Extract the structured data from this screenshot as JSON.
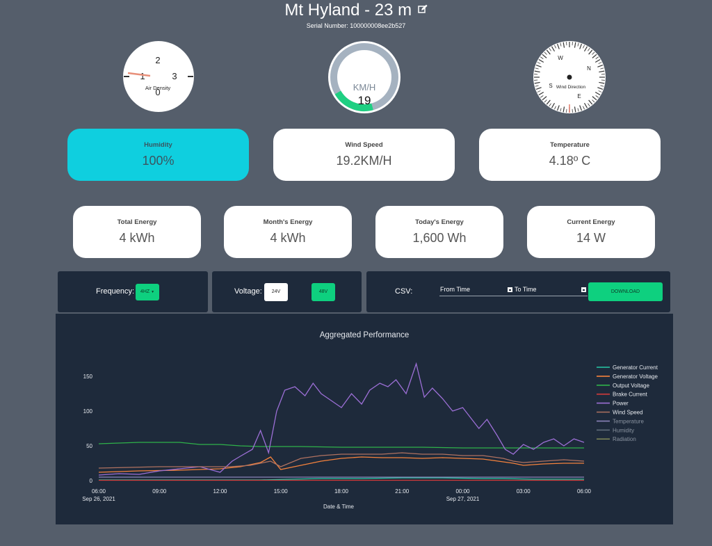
{
  "header": {
    "title": "Mt Hyland - 23 m",
    "serial": "Serial Number: 100000008ee2b527"
  },
  "gauges": {
    "air_density": {
      "label": "Air Density",
      "ticks": [
        "0",
        "1",
        "2",
        "3"
      ],
      "needle_color": "#e8907a"
    },
    "wind_speed": {
      "unit": "KM/H",
      "value": "19",
      "fill_fraction": 0.19,
      "fill_color": "#1fcf82",
      "track_color": "#a5b2c0"
    },
    "wind_direction": {
      "label": "Wind Direction",
      "cardinals": [
        "N",
        "E",
        "S",
        "W"
      ]
    }
  },
  "metrics_top": [
    {
      "label": "Humidity",
      "value": "100%"
    },
    {
      "label": "Wind Speed",
      "value": "19.2KM/H"
    },
    {
      "label": "Temperature",
      "value": "4.18º C"
    }
  ],
  "metrics_energy": [
    {
      "label": "Total Energy",
      "value": "4 kWh"
    },
    {
      "label": "Month's Energy",
      "value": "4 kWh"
    },
    {
      "label": "Today's Energy",
      "value": "1,600 Wh"
    },
    {
      "label": "Current Energy",
      "value": "14 W"
    }
  ],
  "controls": {
    "frequency": {
      "label": "Frequency:",
      "selected": "4HZ"
    },
    "voltage": {
      "label": "Voltage:",
      "options": [
        "24V",
        "48V"
      ]
    },
    "csv": {
      "label": "CSV:",
      "from_label": "From Time",
      "to_label": "To Time",
      "download_label": "DOWNLOAD"
    }
  },
  "chart_data": {
    "type": "line",
    "title": "Aggregated Performance",
    "xlabel": "Date & Time",
    "ylabel": "",
    "x_ticks": [
      "06:00",
      "09:00",
      "12:00",
      "15:00",
      "18:00",
      "21:00",
      "00:00",
      "03:00",
      "06:00"
    ],
    "x_tick_dates": [
      "Sep 26, 2021",
      "",
      "",
      "",
      "",
      "",
      "Sep 27, 2021",
      "",
      ""
    ],
    "x_range_hours": [
      0,
      24
    ],
    "y_ticks": [
      0,
      50,
      100,
      150
    ],
    "ylim": [
      0,
      170
    ],
    "legend_position": "right",
    "series": [
      {
        "name": "Generator Current",
        "color": "#27c9a6",
        "x": [
          0,
          8,
          9.5,
          11,
          13,
          15,
          17,
          19,
          20,
          21.5,
          24
        ],
        "y": [
          1,
          1,
          2,
          3,
          3,
          4,
          4,
          3,
          3,
          2,
          2
        ]
      },
      {
        "name": "Generator Voltage",
        "color": "#f5823c",
        "x": [
          0,
          2,
          4,
          6,
          7,
          8,
          8.5,
          9,
          10,
          11,
          12,
          13,
          14,
          15,
          16,
          17,
          18,
          19,
          20,
          20.5,
          21,
          22,
          23,
          24
        ],
        "y": [
          12,
          14,
          15,
          17,
          20,
          26,
          34,
          16,
          22,
          28,
          32,
          34,
          33,
          33,
          32,
          33,
          32,
          31,
          27,
          25,
          22,
          24,
          25,
          25
        ]
      },
      {
        "name": "Output Voltage",
        "color": "#2fb24a",
        "x": [
          0,
          2,
          3,
          4,
          5,
          6,
          6.5,
          7,
          8,
          10,
          12,
          14,
          16,
          18,
          20,
          22,
          24
        ],
        "y": [
          53,
          55,
          55,
          55,
          52,
          52,
          51,
          50,
          49,
          49,
          48,
          48,
          48,
          47,
          47,
          47,
          47
        ]
      },
      {
        "name": "Brake Current",
        "color": "#d43b3b",
        "x": [
          0,
          24
        ],
        "y": [
          0.5,
          0.5
        ]
      },
      {
        "name": "Power",
        "color": "#9c6fd6",
        "x": [
          0,
          1,
          2,
          3,
          4,
          5,
          6,
          6.6,
          7,
          7.6,
          8.0,
          8.4,
          8.8,
          9.2,
          9.7,
          10.2,
          10.6,
          11.0,
          11.5,
          12.0,
          12.5,
          13.0,
          13.4,
          13.9,
          14.3,
          14.7,
          15.2,
          15.7,
          16.1,
          16.5,
          17.0,
          17.5,
          18.0,
          18.4,
          18.8,
          19.2,
          19.7,
          20.1,
          20.5,
          21.0,
          21.5,
          22.0,
          22.5,
          23.0,
          23.5,
          24.0
        ],
        "y": [
          8,
          10,
          9,
          14,
          17,
          20,
          12,
          28,
          35,
          45,
          72,
          40,
          100,
          130,
          135,
          122,
          140,
          125,
          115,
          105,
          125,
          110,
          130,
          140,
          135,
          145,
          125,
          168,
          120,
          133,
          118,
          100,
          105,
          90,
          75,
          88,
          65,
          45,
          38,
          52,
          45,
          55,
          60,
          50,
          60,
          55
        ]
      },
      {
        "name": "Wind Speed",
        "color": "#b07260",
        "x": [
          0,
          3,
          5,
          6.5,
          7.5,
          8.5,
          9,
          10,
          11,
          12,
          13,
          14,
          15,
          16,
          17,
          18,
          19,
          20,
          20.5,
          21,
          22,
          23,
          24
        ],
        "y": [
          18,
          20,
          20,
          20,
          22,
          28,
          20,
          32,
          36,
          38,
          38,
          38,
          40,
          38,
          38,
          36,
          36,
          32,
          28,
          26,
          28,
          30,
          28
        ]
      },
      {
        "name": "Temperature",
        "color": "#8a83b8",
        "x": [
          0,
          24
        ],
        "y": [
          5,
          5
        ]
      },
      {
        "name": "Humidity",
        "color": "#5f6c7a",
        "x": [],
        "y": []
      },
      {
        "name": "Radiation",
        "color": "#7a8257",
        "x": [],
        "y": []
      }
    ]
  }
}
